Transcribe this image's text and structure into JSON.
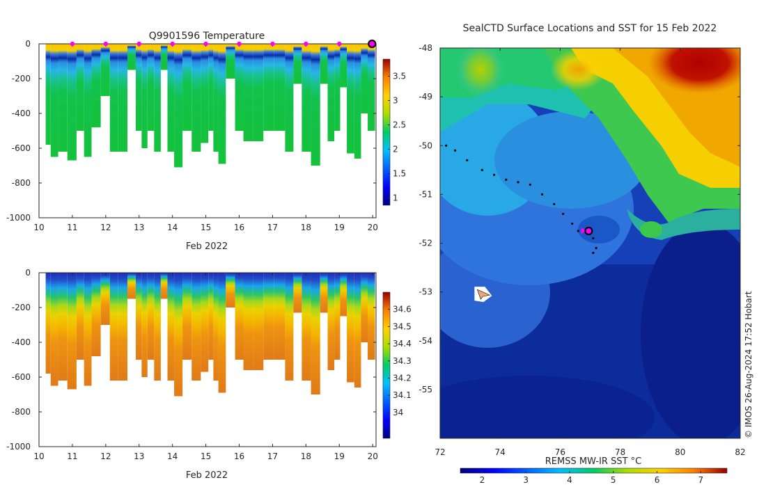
{
  "chart_data": [
    {
      "type": "heatmap",
      "title": "Q9901596  Temperature",
      "xlabel": "Feb 2022",
      "ylabel": "",
      "xlim": [
        10,
        20.1
      ],
      "ylim": [
        -1000,
        0
      ],
      "x_ticks": [
        "10",
        "11",
        "12",
        "13",
        "14",
        "15",
        "16",
        "17",
        "18",
        "19",
        "20"
      ],
      "y_ticks": [
        "0",
        "-200",
        "-400",
        "-600",
        "-800",
        "-1000"
      ],
      "colorbar": {
        "range": [
          0.85,
          3.85
        ],
        "ticks": [
          "1",
          "1.5",
          "2",
          "2.5",
          "3",
          "3.5"
        ]
      },
      "surface_markers_day": [
        11,
        12,
        13,
        14,
        15,
        16,
        17,
        18,
        19
      ],
      "last_profile_day": 19.98,
      "profiles": [
        {
          "day": 10.25,
          "depth": -580
        },
        {
          "day": 10.45,
          "depth": -650
        },
        {
          "day": 10.7,
          "depth": -620
        },
        {
          "day": 11.0,
          "depth": -670
        },
        {
          "day": 11.25,
          "depth": -500
        },
        {
          "day": 11.45,
          "depth": -650
        },
        {
          "day": 11.7,
          "depth": -480
        },
        {
          "day": 12.0,
          "depth": -300
        },
        {
          "day": 12.25,
          "depth": -620
        },
        {
          "day": 12.5,
          "depth": -620
        },
        {
          "day": 12.8,
          "depth": -150
        },
        {
          "day": 13.0,
          "depth": -500
        },
        {
          "day": 13.15,
          "depth": -600
        },
        {
          "day": 13.35,
          "depth": -500
        },
        {
          "day": 13.55,
          "depth": -620
        },
        {
          "day": 13.75,
          "depth": -150
        },
        {
          "day": 13.95,
          "depth": -620
        },
        {
          "day": 14.15,
          "depth": -710
        },
        {
          "day": 14.45,
          "depth": -500
        },
        {
          "day": 14.7,
          "depth": -620
        },
        {
          "day": 15.0,
          "depth": -570
        },
        {
          "day": 15.15,
          "depth": -500
        },
        {
          "day": 15.3,
          "depth": -620
        },
        {
          "day": 15.45,
          "depth": -690
        },
        {
          "day": 15.75,
          "depth": -200
        },
        {
          "day": 16.0,
          "depth": -500
        },
        {
          "day": 16.25,
          "depth": -560
        },
        {
          "day": 16.6,
          "depth": -560
        },
        {
          "day": 16.85,
          "depth": -500
        },
        {
          "day": 17.25,
          "depth": -500
        },
        {
          "day": 17.5,
          "depth": -620
        },
        {
          "day": 17.75,
          "depth": -230
        },
        {
          "day": 18.0,
          "depth": -620
        },
        {
          "day": 18.3,
          "depth": -700
        },
        {
          "day": 18.55,
          "depth": -230
        },
        {
          "day": 18.75,
          "depth": -560
        },
        {
          "day": 18.95,
          "depth": -500
        },
        {
          "day": 19.1,
          "depth": -250
        },
        {
          "day": 19.35,
          "depth": -630
        },
        {
          "day": 19.55,
          "depth": -660
        },
        {
          "day": 19.75,
          "depth": -400
        },
        {
          "day": 19.95,
          "depth": -500
        }
      ]
    },
    {
      "type": "heatmap",
      "title": "",
      "xlabel": "Feb 2022",
      "ylabel": "",
      "xlim": [
        10,
        20.1
      ],
      "ylim": [
        -1000,
        0
      ],
      "x_ticks": [
        "10",
        "11",
        "12",
        "13",
        "14",
        "15",
        "16",
        "17",
        "18",
        "19",
        "20"
      ],
      "y_ticks": [
        "0",
        "-200",
        "-400",
        "-600",
        "-800",
        "-1000"
      ],
      "colorbar": {
        "range": [
          33.85,
          34.7
        ],
        "ticks": [
          "34",
          "34.1",
          "34.2",
          "34.3",
          "34.4",
          "34.5",
          "34.6"
        ]
      }
    },
    {
      "type": "heatmap",
      "title": "SealCTD Surface Locations and SST for 15 Feb 2022",
      "xlabel": "",
      "ylabel": "",
      "xlim": [
        72,
        82
      ],
      "ylim": [
        -56,
        -48
      ],
      "x_ticks": [
        "72",
        "74",
        "76",
        "78",
        "80",
        "82"
      ],
      "y_ticks": [
        "-48",
        "-49",
        "-50",
        "-51",
        "-52",
        "-53",
        "-54",
        "-55"
      ],
      "colorbar": {
        "label": "REMSS MW-IR SST °C",
        "range": [
          1.5,
          7.6
        ],
        "ticks": [
          "2",
          "3",
          "4",
          "5",
          "6",
          "7"
        ]
      },
      "track": [
        [
          72.2,
          -50.0
        ],
        [
          72.5,
          -50.1
        ],
        [
          72.9,
          -50.3
        ],
        [
          73.4,
          -50.5
        ],
        [
          73.8,
          -50.6
        ],
        [
          74.2,
          -50.7
        ],
        [
          74.6,
          -50.75
        ],
        [
          75.0,
          -50.8
        ],
        [
          75.4,
          -51.0
        ],
        [
          75.8,
          -51.2
        ],
        [
          76.1,
          -51.4
        ],
        [
          76.4,
          -51.6
        ],
        [
          76.6,
          -51.75
        ],
        [
          76.9,
          -51.8
        ],
        [
          77.1,
          -51.9
        ],
        [
          77.2,
          -52.1
        ],
        [
          77.1,
          -52.2
        ]
      ],
      "seal_position": [
        76.95,
        -51.75
      ],
      "ice_patch": [
        73.4,
        -53.05
      ],
      "copyright": "© IMOS 26-Aug-2024 17:52 Hobart"
    }
  ]
}
